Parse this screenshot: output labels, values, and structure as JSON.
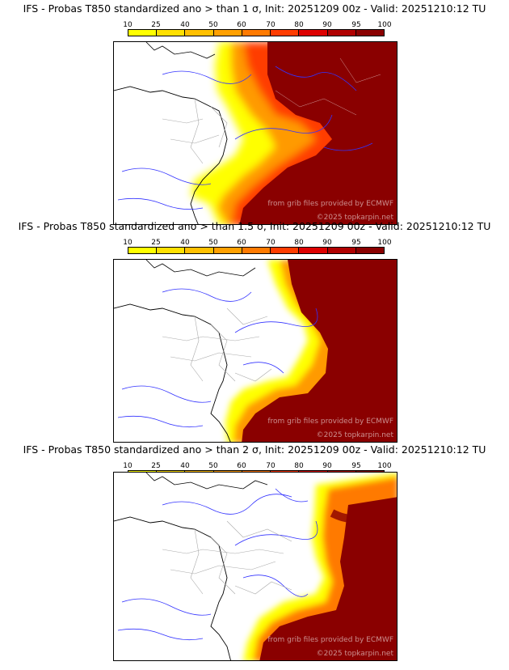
{
  "colorbar": {
    "ticks": [
      "10",
      "25",
      "40",
      "50",
      "60",
      "70",
      "80",
      "90",
      "95",
      "100"
    ],
    "colors": [
      "#ffff00",
      "#ffe000",
      "#ffc000",
      "#ffa000",
      "#ff7a00",
      "#ff3c00",
      "#dd0000",
      "#b00000",
      "#8a0000"
    ]
  },
  "credits": {
    "source": "from grib files provided by ECMWF",
    "site": "©2025 topkarpin.net"
  },
  "panels": [
    {
      "title": "IFS - Probas T850  standardized ano > than 1 σ, Init: 20251209 00z - Valid: 20251210:12 TU"
    },
    {
      "title": "IFS - Probas T850  standardized ano > than 1.5 σ, Init: 20251209 00z - Valid: 20251210:12 TU"
    },
    {
      "title": "IFS - Probas T850  standardized ano > than 2 σ, Init: 20251209 00z - Valid: 20251210:12 TU"
    }
  ]
}
